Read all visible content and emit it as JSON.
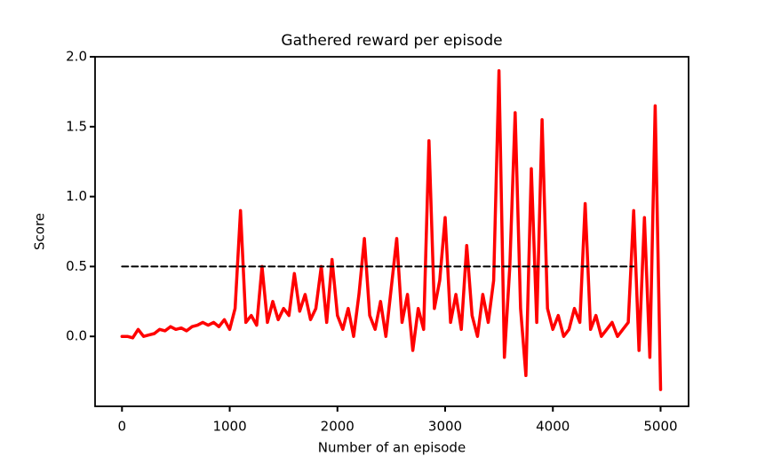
{
  "chart_data": {
    "type": "line",
    "title": "Gathered reward per episode",
    "xlabel": "Number of an episode",
    "ylabel": "Score",
    "x": [
      0,
      50,
      100,
      150,
      200,
      250,
      300,
      350,
      400,
      450,
      500,
      550,
      600,
      650,
      700,
      750,
      800,
      850,
      900,
      950,
      1000,
      1050,
      1100,
      1150,
      1200,
      1250,
      1300,
      1350,
      1400,
      1450,
      1500,
      1550,
      1600,
      1650,
      1700,
      1750,
      1800,
      1850,
      1900,
      1950,
      2000,
      2050,
      2100,
      2150,
      2200,
      2250,
      2300,
      2350,
      2400,
      2450,
      2500,
      2550,
      2600,
      2650,
      2700,
      2750,
      2800,
      2850,
      2900,
      2950,
      3000,
      3050,
      3100,
      3150,
      3200,
      3250,
      3300,
      3350,
      3400,
      3450,
      3500,
      3550,
      3600,
      3650,
      3700,
      3750,
      3800,
      3850,
      3900,
      3950,
      4000,
      4050,
      4100,
      4150,
      4200,
      4250,
      4300,
      4350,
      4400,
      4450,
      4500,
      4550,
      4600,
      4650,
      4700,
      4750,
      4800,
      4850,
      4900,
      4950,
      5000
    ],
    "series": [
      {
        "color": "#ff0000",
        "dash": false,
        "values": [
          0,
          0,
          -0.01,
          0.05,
          0,
          0.01,
          0.02,
          0.05,
          0.04,
          0.07,
          0.05,
          0.06,
          0.04,
          0.07,
          0.08,
          0.1,
          0.08,
          0.1,
          0.07,
          0.12,
          0.05,
          0.2,
          0.9,
          0.1,
          0.15,
          0.08,
          0.5,
          0.1,
          0.25,
          0.12,
          0.2,
          0.15,
          0.45,
          0.18,
          0.3,
          0.12,
          0.2,
          0.5,
          0.1,
          0.55,
          0.15,
          0.05,
          0.2,
          0,
          0.3,
          0.7,
          0.15,
          0.05,
          0.25,
          0,
          0.35,
          0.7,
          0.1,
          0.3,
          -0.1,
          0.2,
          0.05,
          1.4,
          0.2,
          0.4,
          0.85,
          0.1,
          0.3,
          0.05,
          0.65,
          0.15,
          0,
          0.3,
          0.1,
          0.4,
          1.9,
          -0.15,
          0.5,
          1.6,
          0.2,
          -0.28,
          1.2,
          0.1,
          1.55,
          0.2,
          0.05,
          0.15,
          0,
          0.05,
          0.2,
          0.1,
          0.95,
          0.05,
          0.15,
          0,
          0.05,
          0.1,
          0,
          0.05,
          0.1,
          0.9,
          -0.1,
          0.85,
          -0.15,
          1.65,
          -0.38
        ]
      },
      {
        "color": "#000000",
        "dash": true,
        "values": [
          0.5,
          0.5,
          0.5,
          0.5,
          0.5,
          0.5,
          0.5,
          0.5,
          0.5,
          0.5,
          0.5,
          0.5,
          0.5,
          0.5,
          0.5,
          0.5,
          0.5,
          0.5,
          0.5,
          0.5,
          0.5,
          0.5,
          0.5,
          0.5,
          0.5,
          0.5,
          0.5,
          0.5,
          0.5,
          0.5,
          0.5,
          0.5,
          0.5,
          0.5,
          0.5,
          0.5,
          0.5,
          0.5,
          0.5,
          0.5,
          0.5,
          0.5,
          0.5,
          0.5,
          0.5,
          0.5,
          0.5,
          0.5,
          0.5,
          0.5,
          0.5,
          0.5,
          0.5,
          0.5,
          0.5,
          0.5,
          0.5,
          0.5,
          0.5,
          0.5,
          0.5,
          0.5,
          0.5,
          0.5,
          0.5,
          0.5,
          0.5,
          0.5,
          0.5,
          0.5,
          0.5,
          0.5,
          0.5,
          0.5,
          0.5,
          0.5,
          0.5,
          0.5,
          0.5,
          0.5,
          0.5,
          0.5,
          0.5,
          0.5,
          0.5,
          0.5,
          0.5,
          0.5,
          0.5,
          0.5,
          0.5,
          0.5,
          0.5,
          0.5,
          0.5,
          0.5,
          null,
          null,
          null,
          null,
          null
        ]
      }
    ],
    "xlim": [
      -250,
      5260
    ],
    "ylim": [
      -0.5,
      2.0
    ],
    "xticks": [
      0,
      1000,
      2000,
      3000,
      4000,
      5000
    ],
    "yticks": [
      {
        "value": 0,
        "label": "0.0"
      },
      0.5,
      {
        "value": 1,
        "label": "1.0"
      },
      1.5,
      {
        "value": 2,
        "label": "2.0"
      }
    ]
  }
}
